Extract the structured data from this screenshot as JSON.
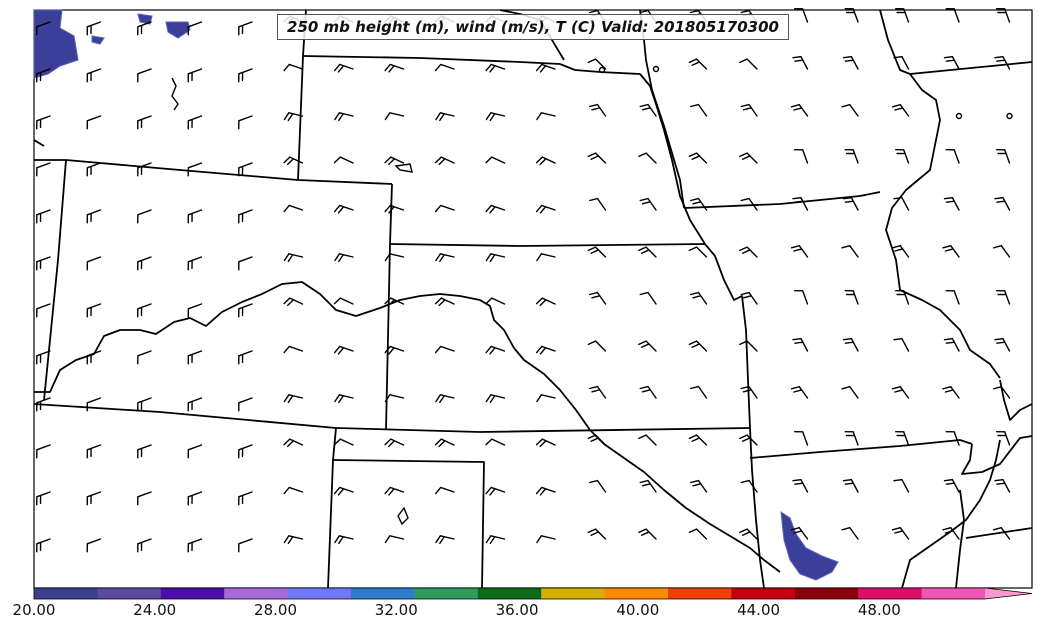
{
  "title": "250 mb height (m), wind (m/s), T (C) Valid: 201805170300",
  "colorbar": {
    "tick_labels": [
      "20.00",
      "24.00",
      "28.00",
      "32.00",
      "36.00",
      "40.00",
      "44.00",
      "48.00"
    ],
    "tick_values": [
      20,
      24,
      28,
      32,
      36,
      40,
      44,
      48
    ],
    "min": 20,
    "max": 51.5,
    "extend": "max",
    "colors": [
      "#3b3f8f",
      "#5b4a9e",
      "#4b0fa8",
      "#a66ad8",
      "#6f78f6",
      "#2f7bd0",
      "#2e9c5a",
      "#0b6b1b",
      "#d4b000",
      "#ff8a00",
      "#ee4000",
      "#c40010",
      "#8b0008",
      "#de0f6b",
      "#f055b4",
      "#ff99cc"
    ]
  },
  "colors": {
    "land_border": "#000000",
    "isotach_fill": "#3b3f9a",
    "barb": "#000000"
  },
  "barb_style": "wind barbs, mostly westerly to northwesterly, calm circles over Iowa/Missouri"
}
